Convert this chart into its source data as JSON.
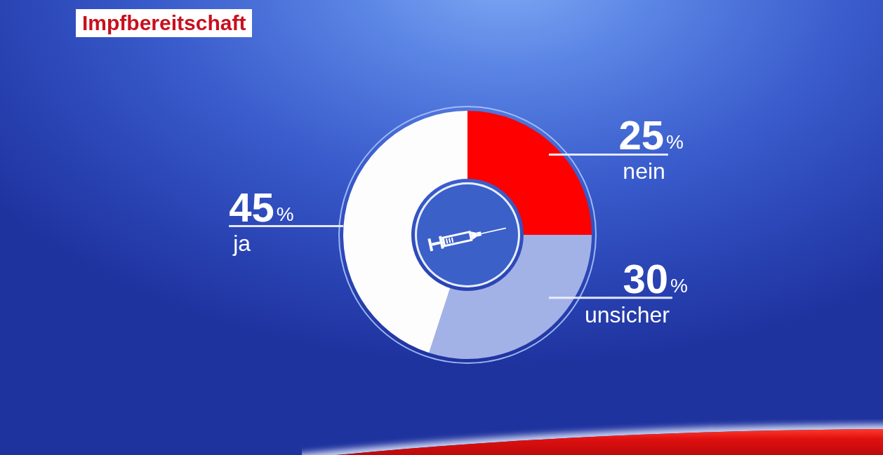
{
  "chart_data": {
    "type": "donut",
    "title": "Impfbereitschaft",
    "categories": [
      "nein",
      "unsicher",
      "ja"
    ],
    "values": [
      25,
      30,
      45
    ],
    "colors": [
      "#fe0000",
      "#a3b2e6",
      "#fdfdfd"
    ],
    "value_labels": [
      "25%",
      "30%",
      "45%"
    ]
  }
}
